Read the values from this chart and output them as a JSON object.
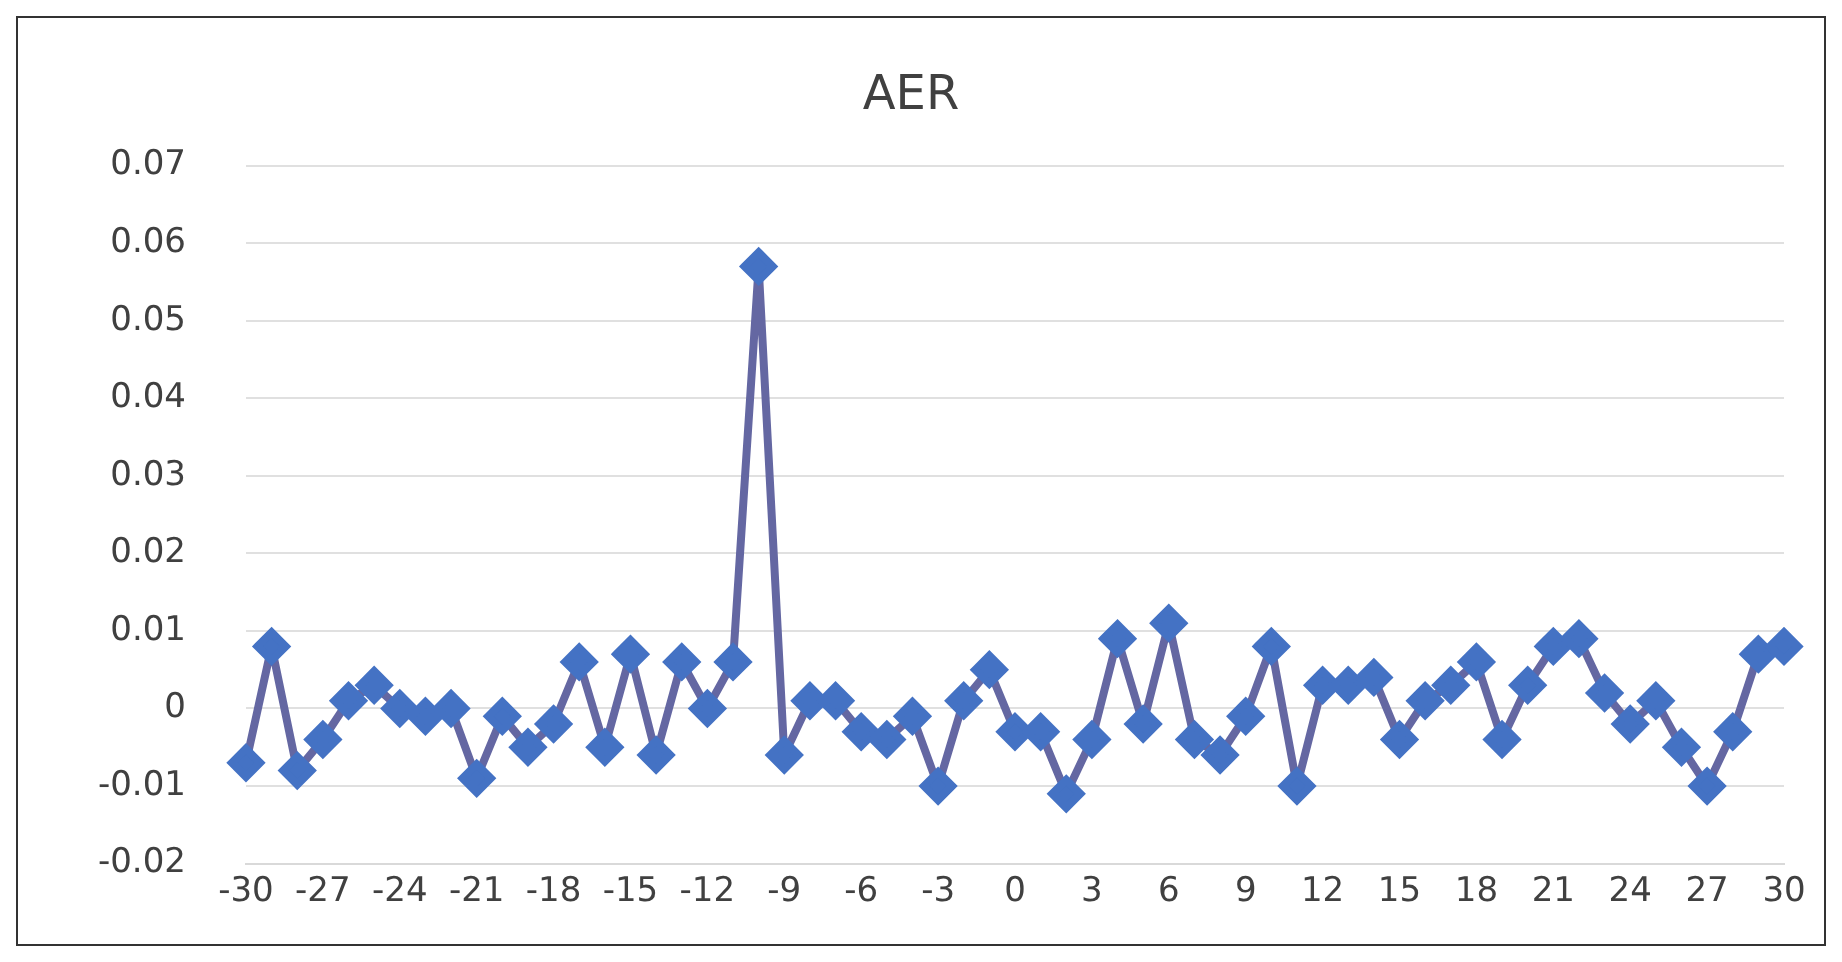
{
  "chart_data": {
    "type": "line",
    "title": "AER",
    "categories": [
      "-30",
      null,
      null,
      "-27",
      null,
      null,
      "-24",
      null,
      null,
      "-21",
      null,
      null,
      "-18",
      null,
      null,
      "-15",
      null,
      null,
      "-12",
      null,
      null,
      "-9",
      null,
      null,
      "-6",
      null,
      null,
      "-3",
      null,
      null,
      "0",
      null,
      null,
      "3",
      null,
      null,
      "6",
      null,
      null,
      "9",
      null,
      null,
      "12",
      null,
      null,
      "15",
      null,
      null,
      "18",
      null,
      null,
      "21",
      null,
      null,
      "24",
      null,
      null,
      "27",
      null,
      null,
      "30"
    ],
    "series": [
      {
        "color": "#4472c4",
        "values": [
          -0.007,
          0.008,
          -0.008,
          -0.004,
          0.001,
          0.003,
          0.0,
          -0.001,
          0.0,
          -0.009,
          -0.001,
          -0.005,
          -0.002,
          0.006,
          -0.005,
          0.007,
          -0.006,
          0.006,
          0.0,
          0.006,
          0.057,
          -0.006,
          0.001,
          0.001,
          -0.003,
          -0.004,
          -0.001,
          -0.01,
          0.001,
          0.005,
          -0.003,
          -0.003,
          -0.011,
          -0.004,
          0.009,
          -0.002,
          0.011,
          -0.004,
          -0.006,
          -0.001,
          0.008,
          -0.01,
          0.003,
          0.003,
          0.004,
          -0.004,
          0.001,
          0.003,
          0.006,
          -0.004,
          0.003,
          0.008,
          0.009,
          0.002,
          -0.002,
          0.001,
          -0.005,
          -0.01,
          -0.003,
          0.007,
          0.008
        ]
      }
    ],
    "ylim": [
      -0.02,
      0.07
    ],
    "yticks": [
      -0.02,
      -0.01,
      0,
      0.01,
      0.02,
      0.03,
      0.04,
      0.05,
      0.06,
      0.07
    ],
    "grid": "y",
    "legend": false,
    "marker": "diamond",
    "line_style": "solid"
  }
}
